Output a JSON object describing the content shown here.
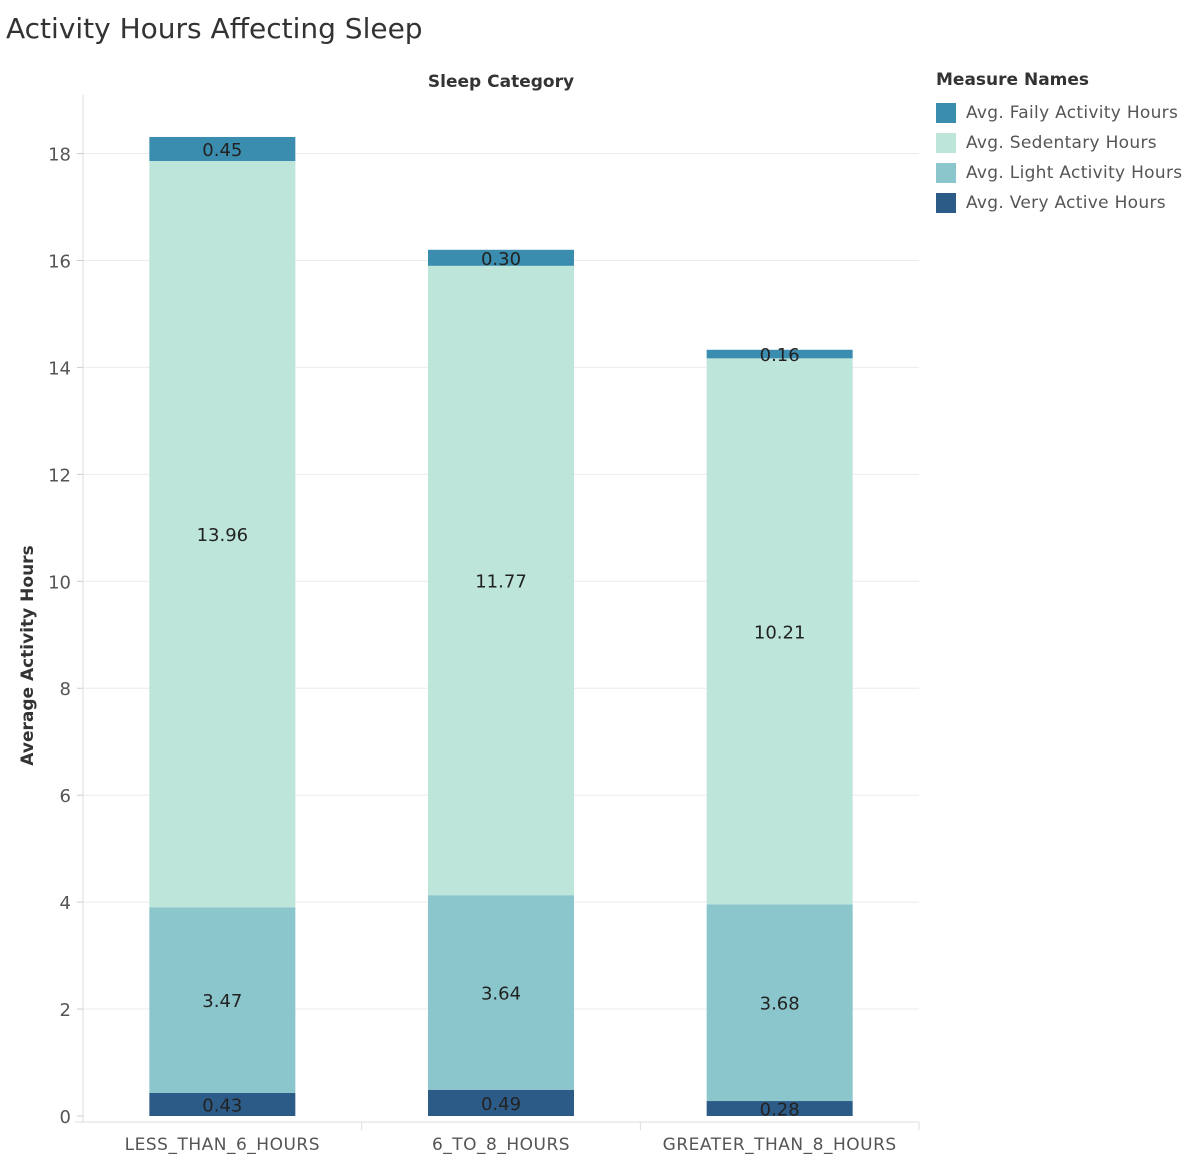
{
  "chart_data": {
    "type": "bar",
    "stacked": true,
    "title": "Activity Hours Affecting Sleep",
    "column_header": "Sleep Category",
    "ylabel": "Average Activity Hours",
    "ylim": [
      0,
      19.2
    ],
    "yticks": [
      0,
      2,
      4,
      6,
      8,
      10,
      12,
      14,
      16,
      18
    ],
    "grid": true,
    "legend_title": "Measure Names",
    "legend_position": "top-right",
    "categories": [
      "LESS_THAN_6_HOURS",
      "6_TO_8_HOURS",
      "GREATER_THAN_8_HOURS"
    ],
    "series": [
      {
        "name": "Avg. Very Active Hours",
        "color": "#2d5b88",
        "values": [
          0.43,
          0.49,
          0.28
        ],
        "labels": [
          "0.43",
          "0.49",
          "0.28"
        ]
      },
      {
        "name": "Avg. Light Activity Hours",
        "color": "#8ac6cc",
        "values": [
          3.47,
          3.64,
          3.68
        ],
        "labels": [
          "3.47",
          "3.64",
          "3.68"
        ]
      },
      {
        "name": "Avg. Sedentary Hours",
        "color": "#bde5da",
        "values": [
          13.96,
          11.77,
          10.21
        ],
        "labels": [
          "13.96",
          "11.77",
          "10.21"
        ]
      },
      {
        "name": "Avg. Faily Activity Hours",
        "color": "#3a8daf",
        "values": [
          0.45,
          0.3,
          0.16
        ],
        "labels": [
          "0.45",
          "0.30",
          "0.16"
        ]
      }
    ],
    "legend_order": [
      "Avg. Faily Activity Hours",
      "Avg. Sedentary Hours",
      "Avg. Light Activity Hours",
      "Avg. Very Active Hours"
    ]
  }
}
